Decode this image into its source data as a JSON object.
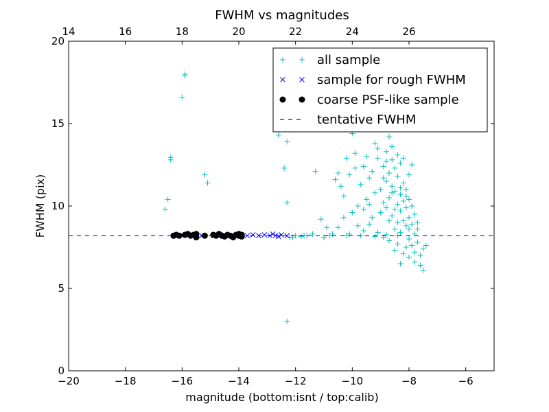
{
  "chart_data": {
    "type": "scatter",
    "title": "FWHM vs magnitudes",
    "xlabel": "magnitude (bottom:isnt / top:calib)",
    "ylabel": "FWHM (pix)",
    "xlim": [
      -20,
      -5
    ],
    "ylim": [
      0,
      20
    ],
    "top_axis": {
      "offset": 34.0,
      "ticks": [
        14,
        16,
        18,
        20,
        22,
        24,
        26
      ]
    },
    "x_ticks": [
      -20,
      -18,
      -16,
      -14,
      -12,
      -10,
      -8,
      -6
    ],
    "y_ticks": [
      0,
      5,
      10,
      15,
      20
    ],
    "x_tick_labels": [
      "−20",
      "−18",
      "−16",
      "−14",
      "−12",
      "−10",
      "−8",
      "−6"
    ],
    "y_tick_labels": [
      "0",
      "5",
      "10",
      "15",
      "20"
    ],
    "top_tick_labels": [
      "14",
      "16",
      "18",
      "20",
      "22",
      "24",
      "26"
    ],
    "grid": false,
    "legend_position": "top-right",
    "legend": [
      {
        "label": "all sample",
        "marker": "plus",
        "color": "#00bfbf"
      },
      {
        "label": "sample for rough FWHM",
        "marker": "x",
        "color": "#0000ff"
      },
      {
        "label": "coarse PSF-like sample",
        "marker": "circle",
        "color": "#000000"
      },
      {
        "label": "tentative FWHM",
        "marker": "dashed-line",
        "color": "#0000ff"
      }
    ],
    "series": [
      {
        "name": "all sample",
        "marker": "plus",
        "color": "#00bfbf",
        "points": [
          [
            -16.6,
            9.8
          ],
          [
            -16.5,
            10.4
          ],
          [
            -16.4,
            12.8
          ],
          [
            -16.4,
            12.95
          ],
          [
            -16.0,
            16.6
          ],
          [
            -15.9,
            17.9
          ],
          [
            -15.9,
            18.0
          ],
          [
            -15.2,
            11.9
          ],
          [
            -15.1,
            11.4
          ],
          [
            -12.6,
            14.3
          ],
          [
            -12.4,
            12.3
          ],
          [
            -12.3,
            10.2
          ],
          [
            -12.3,
            13.9
          ],
          [
            -12.3,
            3.0
          ],
          [
            -12.2,
            8.1
          ],
          [
            -12.0,
            8.2
          ],
          [
            -11.8,
            8.15
          ],
          [
            -11.6,
            8.2
          ],
          [
            -11.4,
            8.3
          ],
          [
            -11.3,
            12.1
          ],
          [
            -11.1,
            9.2
          ],
          [
            -11.0,
            8.1
          ],
          [
            -10.8,
            8.2
          ],
          [
            -10.7,
            8.3
          ],
          [
            -10.6,
            11.6
          ],
          [
            -10.5,
            12.0
          ],
          [
            -10.5,
            8.7
          ],
          [
            -10.4,
            11.2
          ],
          [
            -10.3,
            10.6
          ],
          [
            -10.3,
            9.3
          ],
          [
            -10.2,
            12.9
          ],
          [
            -10.2,
            8.2
          ],
          [
            -10.1,
            11.9
          ],
          [
            -10.0,
            9.6
          ],
          [
            -10.0,
            14.4
          ],
          [
            -9.9,
            13.2
          ],
          [
            -9.9,
            12.3
          ],
          [
            -9.8,
            10.0
          ],
          [
            -9.8,
            8.8
          ],
          [
            -9.7,
            11.3
          ],
          [
            -9.7,
            8.2
          ],
          [
            -9.6,
            12.4
          ],
          [
            -9.6,
            9.8
          ],
          [
            -9.5,
            10.4
          ],
          [
            -9.5,
            13.0
          ],
          [
            -9.4,
            11.7
          ],
          [
            -9.4,
            8.9
          ],
          [
            -9.3,
            12.1
          ],
          [
            -9.3,
            9.3
          ],
          [
            -9.2,
            13.8
          ],
          [
            -9.2,
            10.8
          ],
          [
            -9.1,
            8.4
          ],
          [
            -9.1,
            12.9
          ],
          [
            -9.0,
            11.0
          ],
          [
            -9.0,
            14.8
          ],
          [
            -9.0,
            9.6
          ],
          [
            -8.9,
            12.4
          ],
          [
            -8.9,
            10.2
          ],
          [
            -8.9,
            8.1
          ],
          [
            -8.8,
            13.3
          ],
          [
            -8.8,
            11.5
          ],
          [
            -8.8,
            9.9
          ],
          [
            -8.7,
            12.0
          ],
          [
            -8.7,
            10.5
          ],
          [
            -8.7,
            14.2
          ],
          [
            -8.7,
            7.9
          ],
          [
            -8.6,
            11.2
          ],
          [
            -8.6,
            9.4
          ],
          [
            -8.6,
            12.8
          ],
          [
            -8.6,
            13.6
          ],
          [
            -8.5,
            10.9
          ],
          [
            -8.5,
            8.6
          ],
          [
            -8.5,
            12.3
          ],
          [
            -8.5,
            15.0
          ],
          [
            -8.5,
            7.3
          ],
          [
            -8.4,
            11.8
          ],
          [
            -8.4,
            10.1
          ],
          [
            -8.4,
            9.0
          ],
          [
            -8.4,
            13.1
          ],
          [
            -8.4,
            7.7
          ],
          [
            -8.3,
            12.6
          ],
          [
            -8.3,
            10.7
          ],
          [
            -8.3,
            9.7
          ],
          [
            -8.3,
            8.4
          ],
          [
            -8.3,
            6.5
          ],
          [
            -8.2,
            11.4
          ],
          [
            -8.2,
            10.3
          ],
          [
            -8.2,
            9.1
          ],
          [
            -8.2,
            12.9
          ],
          [
            -8.2,
            7.1
          ],
          [
            -8.1,
            11.0
          ],
          [
            -8.1,
            9.9
          ],
          [
            -8.1,
            8.8
          ],
          [
            -8.1,
            7.5
          ],
          [
            -8.0,
            10.4
          ],
          [
            -8.0,
            9.3
          ],
          [
            -8.0,
            11.9
          ],
          [
            -8.0,
            8.0
          ],
          [
            -8.0,
            6.9
          ],
          [
            -7.9,
            10.0
          ],
          [
            -7.9,
            8.9
          ],
          [
            -7.9,
            7.6
          ],
          [
            -7.9,
            12.5
          ],
          [
            -7.8,
            9.5
          ],
          [
            -7.8,
            8.3
          ],
          [
            -7.8,
            7.2
          ],
          [
            -7.8,
            6.6
          ],
          [
            -7.7,
            9.0
          ],
          [
            -7.7,
            7.8
          ],
          [
            -7.7,
            8.6
          ],
          [
            -7.6,
            7.0
          ],
          [
            -7.6,
            6.4
          ],
          [
            -7.5,
            6.1
          ],
          [
            -7.5,
            7.4
          ],
          [
            -7.4,
            7.6
          ],
          [
            -9.1,
            13.5
          ],
          [
            -8.8,
            12.7
          ],
          [
            -8.6,
            10.8
          ],
          [
            -8.4,
            8.2
          ],
          [
            -8.7,
            9.1
          ],
          [
            -8.9,
            11.7
          ],
          [
            -8.5,
            9.8
          ],
          [
            -8.3,
            11.1
          ],
          [
            -8.1,
            10.6
          ],
          [
            -8.0,
            8.6
          ],
          [
            -9.4,
            10.1
          ],
          [
            -9.6,
            8.5
          ],
          [
            -10.1,
            8.3
          ],
          [
            -10.9,
            8.7
          ],
          [
            -11.7,
            8.2
          ],
          [
            -12.1,
            8.1
          ],
          [
            -9.2,
            8.15
          ],
          [
            -8.8,
            8.25
          ]
        ]
      },
      {
        "name": "sample for rough FWHM",
        "marker": "x",
        "color": "#0000ff",
        "points": [
          [
            -16.2,
            8.2
          ],
          [
            -15.8,
            8.25
          ],
          [
            -15.3,
            8.2
          ],
          [
            -14.9,
            8.2
          ],
          [
            -14.5,
            8.25
          ],
          [
            -14.1,
            8.2
          ],
          [
            -13.9,
            8.25
          ],
          [
            -13.7,
            8.2
          ],
          [
            -13.5,
            8.25
          ],
          [
            -13.3,
            8.2
          ],
          [
            -13.1,
            8.25
          ],
          [
            -12.9,
            8.2
          ],
          [
            -12.8,
            8.3
          ],
          [
            -12.7,
            8.2
          ],
          [
            -12.6,
            8.15
          ],
          [
            -12.5,
            8.25
          ],
          [
            -12.3,
            8.2
          ]
        ]
      },
      {
        "name": "coarse PSF-like sample",
        "marker": "circle",
        "color": "#000000",
        "points": [
          [
            -16.3,
            8.2
          ],
          [
            -16.2,
            8.25
          ],
          [
            -16.1,
            8.2
          ],
          [
            -15.9,
            8.25
          ],
          [
            -15.8,
            8.3
          ],
          [
            -15.7,
            8.2
          ],
          [
            -15.6,
            8.25
          ],
          [
            -15.5,
            8.1
          ],
          [
            -15.5,
            8.3
          ],
          [
            -15.2,
            8.2
          ],
          [
            -14.9,
            8.25
          ],
          [
            -14.8,
            8.2
          ],
          [
            -14.7,
            8.3
          ],
          [
            -14.6,
            8.2
          ],
          [
            -14.5,
            8.15
          ],
          [
            -14.4,
            8.25
          ],
          [
            -14.3,
            8.2
          ],
          [
            -14.2,
            8.1
          ],
          [
            -14.1,
            8.25
          ],
          [
            -14.0,
            8.3
          ],
          [
            -14.0,
            8.2
          ],
          [
            -13.9,
            8.15
          ],
          [
            -13.9,
            8.25
          ]
        ]
      }
    ],
    "reference_line": {
      "name": "tentative FWHM",
      "y": 8.2,
      "style": "dashed",
      "color": "#0000ff"
    }
  }
}
